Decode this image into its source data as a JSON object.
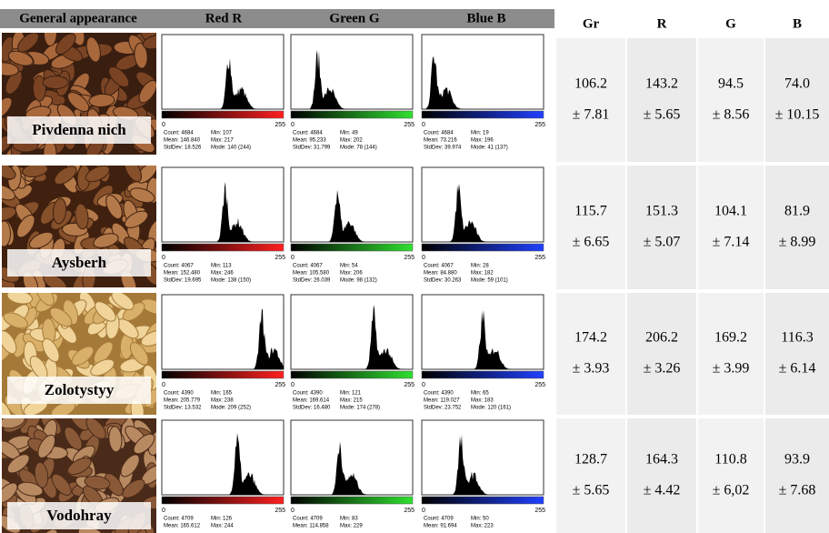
{
  "headers": [
    "General appearance",
    "Red R",
    "Green G",
    "Blue B"
  ],
  "histogram_axis": [
    "0",
    "255"
  ],
  "rows": [
    {
      "name": "Pivdenna nich",
      "histograms": [
        {
          "stats": [
            "Count: 4684",
            "Min: 107",
            "Mean: 146.840",
            "Max: 217",
            "StdDev: 18.526",
            "Mode: 140 (244)"
          ]
        },
        {
          "stats": [
            "Count: 4684",
            "Min: 49",
            "Mean: 95.233",
            "Max: 202",
            "StdDev: 31.799",
            "Mode: 78 (144)"
          ]
        },
        {
          "stats": [
            "Count: 4684",
            "Min: 19",
            "Mean: 73.216",
            "Max: 196",
            "StdDev: 39.974",
            "Mode: 41 (137)"
          ]
        }
      ]
    },
    {
      "name": "Aysberh",
      "histograms": [
        {
          "stats": [
            "Count: 4067",
            "Min: 113",
            "Mean: 152.480",
            "Max: 246",
            "StdDev: 19.695",
            "Mode: 138 (150)"
          ]
        },
        {
          "stats": [
            "Count: 4067",
            "Min: 54",
            "Mean: 105.580",
            "Max: 206",
            "StdDev: 26.039",
            "Mode: 98 (132)"
          ]
        },
        {
          "stats": [
            "Count: 4067",
            "Min: 28",
            "Mean: 84.880",
            "Max: 182",
            "StdDev: 30.263",
            "Mode: 59 (101)"
          ]
        }
      ]
    },
    {
      "name": "Zolotystyy",
      "histograms": [
        {
          "stats": [
            "Count: 4390",
            "Min: 165",
            "Mean: 205.779",
            "Max: 238",
            "StdDev: 13.532",
            "Mode: 209 (252)"
          ]
        },
        {
          "stats": [
            "Count: 4390",
            "Min: 121",
            "Mean: 169.614",
            "Max: 215",
            "StdDev: 16.480",
            "Mode: 174 (278)"
          ]
        },
        {
          "stats": [
            "Count: 4390",
            "Min: 65",
            "Mean: 119.027",
            "Max: 183",
            "StdDev: 23.752",
            "Mode: 120 (161)"
          ]
        }
      ]
    },
    {
      "name": "Vodohray",
      "histograms": [
        {
          "stats": [
            "Count: 4709",
            "Min: 126",
            "Mean: 165.612",
            "Max: 244"
          ]
        },
        {
          "stats": [
            "Count: 4709",
            "Min: 83",
            "Mean: 114.858",
            "Max: 229"
          ]
        },
        {
          "stats": [
            "Count: 4709",
            "Min: 50",
            "Mean: 91.694",
            "Max: 223"
          ]
        }
      ]
    }
  ],
  "table": {
    "headers": [
      "Gr",
      "R",
      "G",
      "B"
    ],
    "rows": [
      [
        [
          "106.2",
          "± 7.81"
        ],
        [
          "143.2",
          "± 5.65"
        ],
        [
          "94.5",
          "± 8.56"
        ],
        [
          "74.0",
          "± 10.15"
        ]
      ],
      [
        [
          "115.7",
          "± 6.65"
        ],
        [
          "151.3",
          "± 5.07"
        ],
        [
          "104.1",
          "± 7.14"
        ],
        [
          "81.9",
          "± 8.99"
        ]
      ],
      [
        [
          "174.2",
          "± 3.93"
        ],
        [
          "206.2",
          "± 3.26"
        ],
        [
          "169.2",
          "± 3.99"
        ],
        [
          "116.3",
          "± 6.14"
        ]
      ],
      [
        [
          "128.7",
          "± 5.65"
        ],
        [
          "164.3",
          "± 4.42"
        ],
        [
          "110.8",
          "± 6,02"
        ],
        [
          "93.9",
          "± 7.68"
        ]
      ]
    ]
  }
}
